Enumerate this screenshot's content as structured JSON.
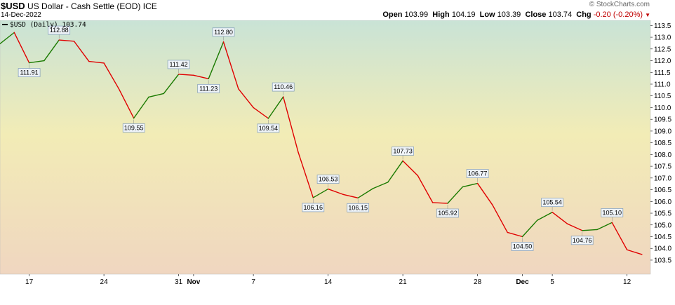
{
  "header": {
    "symbol": "$USD",
    "name": "US Dollar - Cash Settle (EOD)",
    "exchange": "ICE",
    "date": "14-Dec-2022",
    "stamp": "© StockCharts.com",
    "ohlc": {
      "open_label": "Open",
      "open": "103.99",
      "high_label": "High",
      "high": "104.19",
      "low_label": "Low",
      "low": "103.39",
      "close_label": "Close",
      "close": "103.74",
      "chg_label": "Chg",
      "chg": "-0.20 (-0.20%)"
    }
  },
  "chart_data": {
    "type": "line",
    "legend": "$USD (Daily) 103.74",
    "legend_position": "top-left",
    "up_color": "#1a7a00",
    "down_color": "#e00000",
    "ylim": [
      103.2,
      113.6
    ],
    "yticks": [
      103.5,
      104.0,
      104.5,
      105.0,
      105.5,
      106.0,
      106.5,
      107.0,
      107.5,
      108.0,
      108.5,
      109.0,
      109.5,
      110.0,
      110.5,
      111.0,
      111.5,
      112.0,
      112.5,
      113.0,
      113.5
    ],
    "xticks": [
      {
        "label": "17",
        "index": 2,
        "bold": false
      },
      {
        "label": "24",
        "index": 7,
        "bold": false
      },
      {
        "label": "31",
        "index": 12,
        "bold": false
      },
      {
        "label": "Nov",
        "index": 13,
        "bold": true
      },
      {
        "label": "7",
        "index": 17,
        "bold": false
      },
      {
        "label": "14",
        "index": 22,
        "bold": false
      },
      {
        "label": "21",
        "index": 27,
        "bold": false
      },
      {
        "label": "28",
        "index": 32,
        "bold": false
      },
      {
        "label": "Dec",
        "index": 35,
        "bold": true
      },
      {
        "label": "5",
        "index": 37,
        "bold": false
      },
      {
        "label": "12",
        "index": 42,
        "bold": false
      }
    ],
    "values": [
      112.7,
      113.2,
      111.91,
      112.0,
      112.88,
      112.83,
      111.97,
      111.9,
      110.8,
      109.55,
      110.45,
      110.6,
      111.42,
      111.38,
      111.23,
      112.8,
      110.8,
      110.0,
      109.54,
      110.46,
      108.1,
      106.16,
      106.53,
      106.3,
      106.15,
      106.55,
      106.82,
      107.73,
      107.1,
      105.95,
      105.92,
      106.62,
      106.77,
      105.85,
      104.68,
      104.5,
      105.2,
      105.54,
      105.05,
      104.76,
      104.8,
      105.1,
      103.94,
      103.74
    ],
    "labeled": [
      {
        "index": 2,
        "text": "111.91",
        "pos": "below"
      },
      {
        "index": 4,
        "text": "112.88",
        "pos": "above"
      },
      {
        "index": 9,
        "text": "109.55",
        "pos": "below"
      },
      {
        "index": 12,
        "text": "111.42",
        "pos": "above"
      },
      {
        "index": 14,
        "text": "111.23",
        "pos": "below"
      },
      {
        "index": 15,
        "text": "112.80",
        "pos": "above"
      },
      {
        "index": 18,
        "text": "109.54",
        "pos": "below"
      },
      {
        "index": 19,
        "text": "110.46",
        "pos": "above"
      },
      {
        "index": 21,
        "text": "106.16",
        "pos": "below"
      },
      {
        "index": 22,
        "text": "106.53",
        "pos": "above"
      },
      {
        "index": 24,
        "text": "106.15",
        "pos": "below"
      },
      {
        "index": 27,
        "text": "107.73",
        "pos": "above"
      },
      {
        "index": 30,
        "text": "105.92",
        "pos": "below"
      },
      {
        "index": 32,
        "text": "106.77",
        "pos": "above"
      },
      {
        "index": 35,
        "text": "104.50",
        "pos": "below"
      },
      {
        "index": 37,
        "text": "105.54",
        "pos": "above"
      },
      {
        "index": 39,
        "text": "104.76",
        "pos": "below"
      },
      {
        "index": 41,
        "text": "105.10",
        "pos": "above"
      }
    ]
  }
}
